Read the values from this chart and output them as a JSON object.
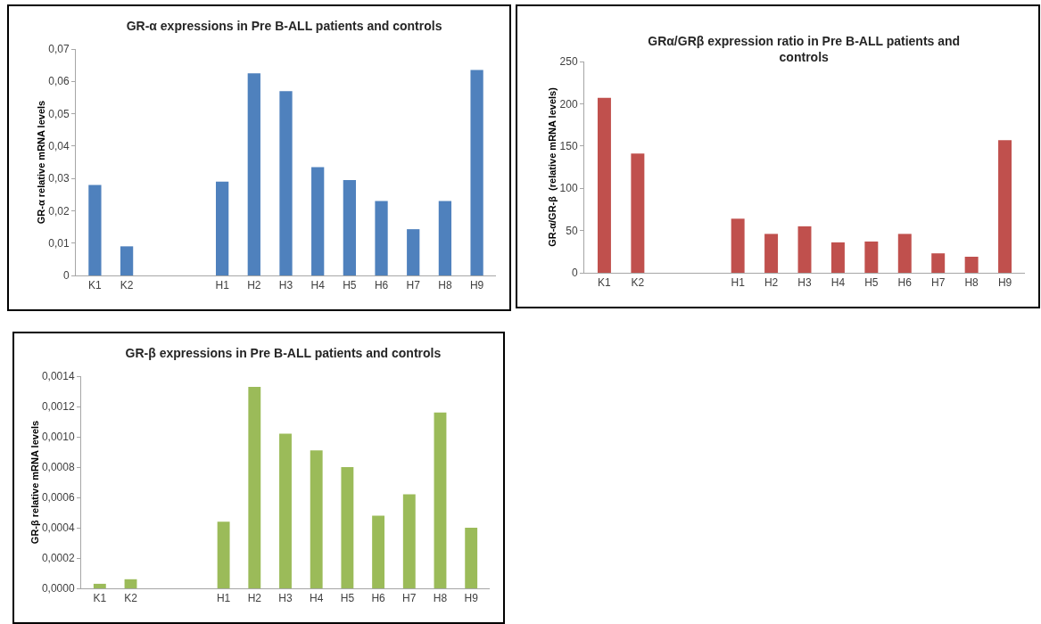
{
  "chart_data": [
    {
      "type": "bar",
      "title": "GR-α expressions in Pre B-ALL patients and controls",
      "ylabel": "GR-α relative mRNA levels",
      "categories": [
        "K1",
        "K2",
        null,
        null,
        "H1",
        "H2",
        "H3",
        "H4",
        "H5",
        "H6",
        "H7",
        "H8",
        "H9"
      ],
      "series": [
        {
          "color": "#4f81bd",
          "values": [
            0.028,
            0.009,
            null,
            null,
            0.029,
            0.0625,
            0.057,
            0.0335,
            0.0295,
            0.023,
            0.0143,
            0.023,
            0.0635
          ]
        }
      ],
      "ylim": [
        0,
        0.07
      ],
      "yticks": [
        0,
        {
          "value": 0.01,
          "label": "0,01"
        },
        {
          "value": 0.02,
          "label": "0,02"
        },
        {
          "value": 0.03,
          "label": "0,03"
        },
        {
          "value": 0.04,
          "label": "0,04"
        },
        {
          "value": 0.05,
          "label": "0,05"
        },
        {
          "value": 0.06,
          "label": "0,06"
        },
        {
          "value": 0.07,
          "label": "0,07"
        }
      ],
      "grid": false
    },
    {
      "type": "bar",
      "title": "GRα/GRβ expression ratio in Pre B-ALL patients and controls",
      "ylabel": "GR-α/GR-β  (relative mRNA levels)",
      "categories": [
        "K1",
        "K2",
        null,
        null,
        "H1",
        "H2",
        "H3",
        "H4",
        "H5",
        "H6",
        "H7",
        "H8",
        "H9"
      ],
      "series": [
        {
          "color": "#c0504d",
          "values": [
            207,
            141,
            null,
            null,
            64,
            46,
            55,
            36,
            37,
            46,
            23,
            19,
            157
          ]
        }
      ],
      "ylim": [
        0,
        250
      ],
      "yticks": [
        0,
        50,
        100,
        150,
        200,
        250
      ],
      "grid": false
    },
    {
      "type": "bar",
      "title": "GR-β expressions in Pre B-ALL patients and controls",
      "ylabel": "GR-β relative mRNA levels",
      "categories": [
        "K1",
        "K2",
        null,
        null,
        "H1",
        "H2",
        "H3",
        "H4",
        "H5",
        "H6",
        "H7",
        "H8",
        "H9"
      ],
      "series": [
        {
          "color": "#9bbb59",
          "values": [
            3e-05,
            6e-05,
            null,
            null,
            0.00044,
            0.00133,
            0.00102,
            0.00091,
            0.0008,
            0.00048,
            0.00062,
            0.00116,
            0.0004
          ]
        }
      ],
      "ylim": [
        0,
        0.0014
      ],
      "yticks": [
        {
          "value": 0,
          "label": "0,0000"
        },
        {
          "value": 0.0002,
          "label": "0,0002"
        },
        {
          "value": 0.0004,
          "label": "0,0004"
        },
        {
          "value": 0.0006,
          "label": "0,0006"
        },
        {
          "value": 0.0008,
          "label": "0,0008"
        },
        {
          "value": 0.001,
          "label": "0,0010"
        },
        {
          "value": 0.0012,
          "label": "0,0012"
        },
        {
          "value": 0.0014,
          "label": "0,0014"
        }
      ],
      "grid": false
    }
  ]
}
